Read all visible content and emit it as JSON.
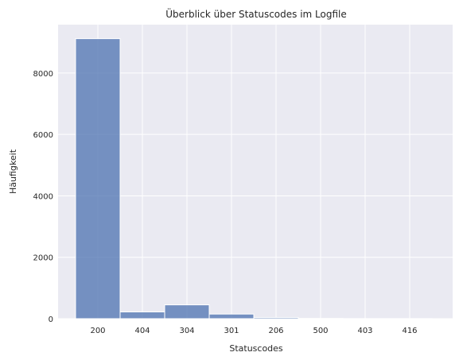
{
  "colors": {
    "plot_background": "#eaeaf2",
    "grid": "#ffffff",
    "bar_fill": "#4c72b0",
    "bar_fill_opacity": 0.75,
    "bar_edge": "#ffffff",
    "text": "#262626"
  },
  "chart_data": {
    "type": "bar",
    "title": "Überblick über Statuscodes im Logfile",
    "xlabel": "Statuscodes",
    "ylabel": "Häufigkeit",
    "categories": [
      "200",
      "404",
      "304",
      "301",
      "206",
      "500",
      "403",
      "416"
    ],
    "values": [
      9120,
      220,
      450,
      150,
      40,
      8,
      5,
      3
    ],
    "yticks": [
      0,
      2000,
      4000,
      6000,
      8000
    ],
    "ylim": [
      0,
      9576
    ],
    "grid": true,
    "legend": "none"
  }
}
